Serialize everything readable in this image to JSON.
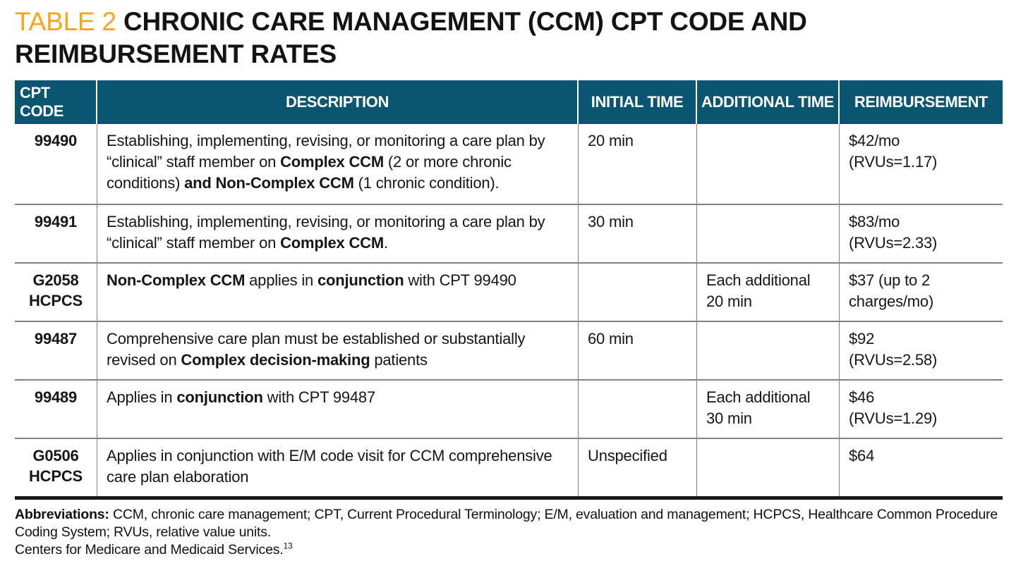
{
  "title": {
    "tag": "TABLE 2",
    "text": "CHRONIC CARE MANAGEMENT (CCM) CPT CODE AND REIMBURSEMENT RATES"
  },
  "colors": {
    "header_bg": "#0a5571",
    "tag_orange": "#f9a51c",
    "grid_line": "#828282",
    "bottom_border": "#161616"
  },
  "table": {
    "columns": [
      "CPT CODE",
      "DESCRIPTION",
      "INITIAL TIME",
      "ADDITIONAL TIME",
      "REIMBURSEMENT"
    ],
    "rows": [
      {
        "code": [
          "99490"
        ],
        "description": [
          {
            "t": "Establishing, implementing, revising, or monitoring a care plan by “clinical” staff member on ",
            "b": false
          },
          {
            "t": "Complex CCM",
            "b": true
          },
          {
            "t": " (2 or more chronic conditions) ",
            "b": false
          },
          {
            "t": "and Non-Complex CCM",
            "b": true
          },
          {
            "t": " (1 chronic condition).",
            "b": false
          }
        ],
        "initial_time": [
          "20 min"
        ],
        "additional_time": [],
        "reimbursement": [
          "$42/mo",
          "(RVUs=1.17)"
        ]
      },
      {
        "code": [
          "99491"
        ],
        "description": [
          {
            "t": "Establishing, implementing, revising, or monitoring a care plan by “clinical” staff member on ",
            "b": false
          },
          {
            "t": "Complex CCM",
            "b": true
          },
          {
            "t": ".",
            "b": false
          }
        ],
        "initial_time": [
          "30 min"
        ],
        "additional_time": [],
        "reimbursement": [
          "$83/mo",
          "(RVUs=2.33)"
        ]
      },
      {
        "code": [
          "G2058",
          "HCPCS"
        ],
        "description": [
          {
            "t": "Non-Complex CCM",
            "b": true
          },
          {
            "t": " applies in ",
            "b": false
          },
          {
            "t": "conjunction",
            "b": true
          },
          {
            "t": " with CPT 99490",
            "b": false
          }
        ],
        "initial_time": [],
        "additional_time": [
          "Each additional",
          "20 min"
        ],
        "reimbursement": [
          "$37 (up to 2",
          "charges/mo)"
        ]
      },
      {
        "code": [
          "99487"
        ],
        "description": [
          {
            "t": "Comprehensive care plan must be established or substantially revised on ",
            "b": false
          },
          {
            "t": "Complex decision-making",
            "b": true
          },
          {
            "t": " patients",
            "b": false
          }
        ],
        "initial_time": [
          "60 min"
        ],
        "additional_time": [],
        "reimbursement": [
          "$92",
          "(RVUs=2.58)"
        ]
      },
      {
        "code": [
          "99489"
        ],
        "description": [
          {
            "t": "Applies in ",
            "b": false
          },
          {
            "t": "conjunction",
            "b": true
          },
          {
            "t": " with CPT 99487",
            "b": false
          }
        ],
        "initial_time": [],
        "additional_time": [
          "Each additional",
          "30 min"
        ],
        "reimbursement": [
          "$46",
          "(RVUs=1.29)"
        ]
      },
      {
        "code": [
          "G0506",
          "HCPCS"
        ],
        "description": [
          {
            "t": "Applies in conjunction with E/M code visit for CCM comprehensive care plan elaboration",
            "b": false
          }
        ],
        "initial_time": [
          "Unspecified"
        ],
        "additional_time": [],
        "reimbursement": [
          "$64"
        ]
      }
    ]
  },
  "footnotes": {
    "abbreviations_label": "Abbreviations:",
    "abbreviations_text": " CCM, chronic care management; CPT, Current Procedural Terminology; E/M, evaluation and management; HCPCS, Healthcare Common Procedure Coding System; RVUs, relative value units.",
    "source_text": "Centers for Medicare and Medicaid Services.",
    "source_ref": "13"
  }
}
